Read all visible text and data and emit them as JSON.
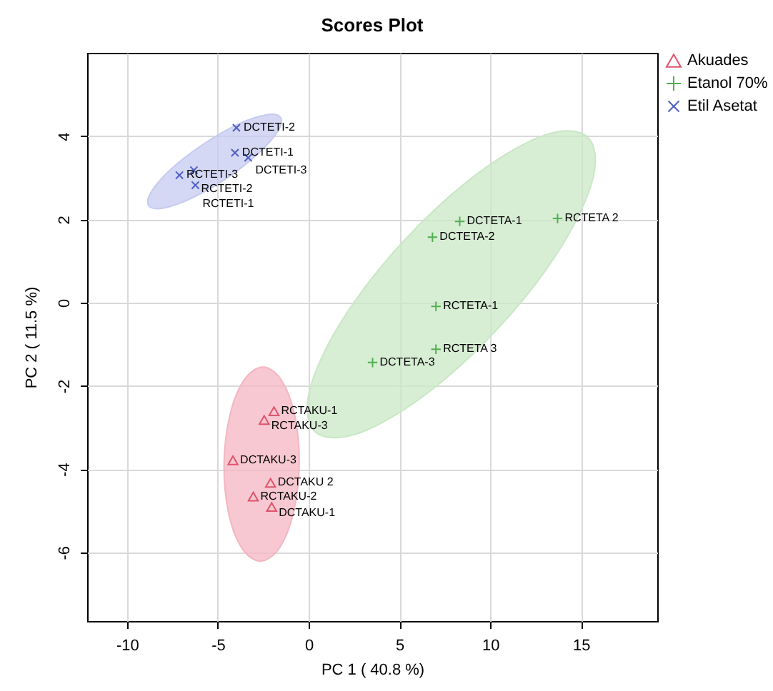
{
  "chart_data": {
    "type": "scatter",
    "title": "Scores Plot",
    "xlabel": "PC 1 ( 40.8 %)",
    "ylabel": "PC 2 ( 11.5 %)",
    "xlim": [
      -12.2,
      19.2
    ],
    "ylim": [
      -7.65,
      6.0
    ],
    "xticks": [
      -10,
      -5,
      0,
      5,
      10,
      15
    ],
    "yticks": [
      -6,
      -4,
      -2,
      0,
      2,
      4
    ],
    "grid": true,
    "legend": "top right",
    "series": [
      {
        "type": "area",
        "color": "#f4b6c2",
        "x": [
          -2.51,
          -1.49,
          -0.76,
          -0.52,
          -0.84,
          -1.62,
          -2.67,
          -3.69,
          -4.42,
          -4.66,
          -4.34,
          -3.56
        ],
        "values": [
          -1.55,
          -1.87,
          -2.72,
          -3.89,
          -5.05,
          -5.9,
          -6.21,
          -5.89,
          -5.04,
          -3.87,
          -2.71,
          -1.86
        ]
      },
      {
        "type": "area",
        "color": "#c9e7c6",
        "x": [
          15.35,
          15.66,
          13.87,
          10.47,
          6.37,
          2.67,
          0.35,
          0.05,
          1.83,
          5.23,
          9.33,
          13.04
        ],
        "values": [
          3.98,
          2.99,
          1.31,
          -0.6,
          -2.23,
          -3.15,
          -3.1,
          -2.11,
          -0.43,
          1.48,
          3.11,
          4.03
        ]
      },
      {
        "type": "area",
        "color": "#c6cbf0",
        "x": [
          -1.55,
          -1.72,
          -2.81,
          -4.54,
          -6.44,
          -8.0,
          -8.81,
          -8.64,
          -7.55,
          -5.82,
          -3.92,
          -2.36
        ],
        "values": [
          4.45,
          4.1,
          3.57,
          2.98,
          2.51,
          2.27,
          2.33,
          2.68,
          3.22,
          3.8,
          4.28,
          4.51
        ]
      },
      {
        "name": "Akuades",
        "color": "#df536b",
        "marker": "triangle",
        "x": [
          -1.91,
          -2.45,
          -4.17,
          -2.1,
          -3.05,
          -2.04
        ],
        "values": [
          -2.61,
          -2.82,
          -3.79,
          -4.33,
          -4.66,
          -4.91
        ]
      },
      {
        "name": "Etanol 70%",
        "color": "#4fb04f",
        "marker": "cross",
        "x": [
          8.32,
          13.71,
          6.82,
          7.01,
          7.01,
          3.52
        ],
        "values": [
          1.95,
          2.02,
          1.57,
          -0.09,
          -1.12,
          -1.44
        ]
      },
      {
        "name": "Etil Asetat",
        "color": "#4d5fc4",
        "marker": "x",
        "x": [
          -3.98,
          -4.06,
          -3.33,
          -6.32,
          -7.12,
          -6.24
        ],
        "values": [
          4.2,
          3.6,
          3.48,
          3.18,
          3.06,
          2.82
        ]
      }
    ],
    "annotations": [
      {
        "text": "RCTAKU-1",
        "x": -1.91,
        "y": -2.61
      },
      {
        "text": "RCTAKU-3",
        "x": -2.45,
        "y": -2.82
      },
      {
        "text": "DCTAKU-3",
        "x": -4.17,
        "y": -3.79
      },
      {
        "text": "DCTAKU 2",
        "x": -2.1,
        "y": -4.33
      },
      {
        "text": "RCTAKU-2",
        "x": -3.05,
        "y": -4.66
      },
      {
        "text": "DCTAKU-1",
        "x": -2.04,
        "y": -4.91
      },
      {
        "text": "DCTETA-1",
        "x": 8.32,
        "y": 1.95
      },
      {
        "text": "RCTETA 2",
        "x": 13.71,
        "y": 2.02
      },
      {
        "text": "DCTETA-2",
        "x": 6.82,
        "y": 1.57
      },
      {
        "text": "RCTETA-1",
        "x": 7.01,
        "y": -0.09
      },
      {
        "text": "RCTETA 3",
        "x": 7.01,
        "y": -1.12
      },
      {
        "text": "DCTETA-3",
        "x": 3.52,
        "y": -1.44
      },
      {
        "text": "DCTETI-2",
        "x": -3.98,
        "y": 4.2
      },
      {
        "text": "DCTETI-1",
        "x": -4.06,
        "y": 3.6
      },
      {
        "text": "DCTETI-3",
        "x": -3.33,
        "y": 3.48
      },
      {
        "text": "RCTETI-2",
        "x": -6.32,
        "y": 3.18
      },
      {
        "text": "RCTETI-3",
        "x": -7.12,
        "y": 3.06
      },
      {
        "text": "RCTETI-1",
        "x": -6.24,
        "y": 2.82
      }
    ]
  }
}
